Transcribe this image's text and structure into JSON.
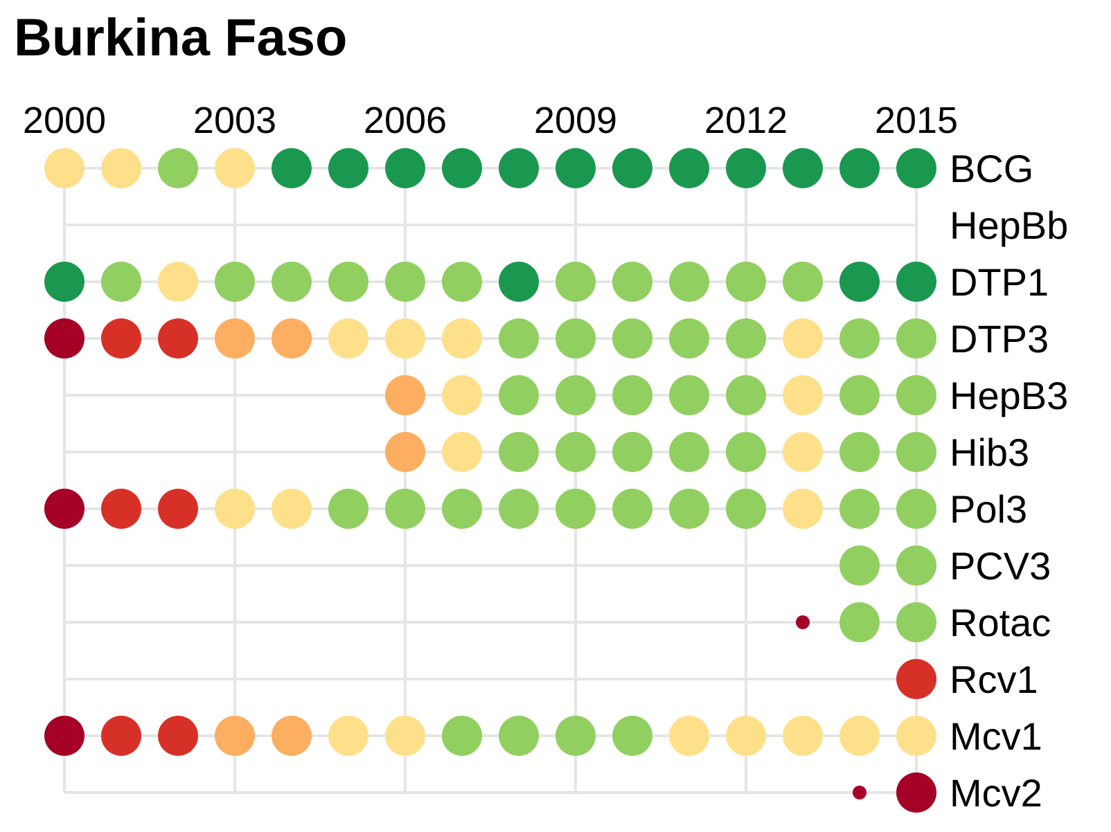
{
  "title": "Burkina Faso",
  "colors": {
    "dark_red": "#a50026",
    "red": "#d73027",
    "orange": "#fdae61",
    "yellow": "#fee08b",
    "light_green": "#91cf60",
    "dark_green": "#1a9850",
    "grid": "#e5e5e5"
  },
  "chart_data": {
    "type": "dot-matrix",
    "x_ticks": [
      "2000",
      "2003",
      "2006",
      "2009",
      "2012",
      "2015"
    ],
    "years": [
      2000,
      2001,
      2002,
      2003,
      2004,
      2005,
      2006,
      2007,
      2008,
      2009,
      2010,
      2011,
      2012,
      2013,
      2014,
      2015
    ],
    "grid": "on",
    "legend": "none",
    "note": "each dot is one year; color encodes coverage level (dark_red lowest to dark_green highest); a small dot marks a much smaller size value",
    "series": [
      {
        "name": "BCG",
        "values": [
          "yellow",
          "yellow",
          "light_green",
          "yellow",
          "dark_green",
          "dark_green",
          "dark_green",
          "dark_green",
          "dark_green",
          "dark_green",
          "dark_green",
          "dark_green",
          "dark_green",
          "dark_green",
          "dark_green",
          "dark_green"
        ]
      },
      {
        "name": "HepBb",
        "values": [
          null,
          null,
          null,
          null,
          null,
          null,
          null,
          null,
          null,
          null,
          null,
          null,
          null,
          null,
          null,
          null
        ]
      },
      {
        "name": "DTP1",
        "values": [
          "dark_green",
          "light_green",
          "yellow",
          "light_green",
          "light_green",
          "light_green",
          "light_green",
          "light_green",
          "dark_green",
          "light_green",
          "light_green",
          "light_green",
          "light_green",
          "light_green",
          "dark_green",
          "dark_green"
        ]
      },
      {
        "name": "DTP3",
        "values": [
          "dark_red",
          "red",
          "red",
          "orange",
          "orange",
          "yellow",
          "yellow",
          "yellow",
          "light_green",
          "light_green",
          "light_green",
          "light_green",
          "light_green",
          "yellow",
          "light_green",
          "light_green"
        ]
      },
      {
        "name": "HepB3",
        "values": [
          null,
          null,
          null,
          null,
          null,
          null,
          "orange",
          "yellow",
          "light_green",
          "light_green",
          "light_green",
          "light_green",
          "light_green",
          "yellow",
          "light_green",
          "light_green"
        ]
      },
      {
        "name": "Hib3",
        "values": [
          null,
          null,
          null,
          null,
          null,
          null,
          "orange",
          "yellow",
          "light_green",
          "light_green",
          "light_green",
          "light_green",
          "light_green",
          "yellow",
          "light_green",
          "light_green"
        ]
      },
      {
        "name": "Pol3",
        "values": [
          "dark_red",
          "red",
          "red",
          "yellow",
          "yellow",
          "light_green",
          "light_green",
          "light_green",
          "light_green",
          "light_green",
          "light_green",
          "light_green",
          "light_green",
          "yellow",
          "light_green",
          "light_green"
        ]
      },
      {
        "name": "PCV3",
        "values": [
          null,
          null,
          null,
          null,
          null,
          null,
          null,
          null,
          null,
          null,
          null,
          null,
          null,
          null,
          "light_green",
          "light_green"
        ]
      },
      {
        "name": "Rotac",
        "values": [
          null,
          null,
          null,
          null,
          null,
          null,
          null,
          null,
          null,
          null,
          null,
          null,
          null,
          "dark_red:small",
          "light_green",
          "light_green"
        ]
      },
      {
        "name": "Rcv1",
        "values": [
          null,
          null,
          null,
          null,
          null,
          null,
          null,
          null,
          null,
          null,
          null,
          null,
          null,
          null,
          null,
          "red"
        ]
      },
      {
        "name": "Mcv1",
        "values": [
          "dark_red",
          "red",
          "red",
          "orange",
          "orange",
          "yellow",
          "yellow",
          "light_green",
          "light_green",
          "light_green",
          "light_green",
          "yellow",
          "yellow",
          "yellow",
          "yellow",
          "yellow"
        ]
      },
      {
        "name": "Mcv2",
        "values": [
          null,
          null,
          null,
          null,
          null,
          null,
          null,
          null,
          null,
          null,
          null,
          null,
          null,
          null,
          "dark_red:small",
          "dark_red"
        ]
      }
    ]
  }
}
